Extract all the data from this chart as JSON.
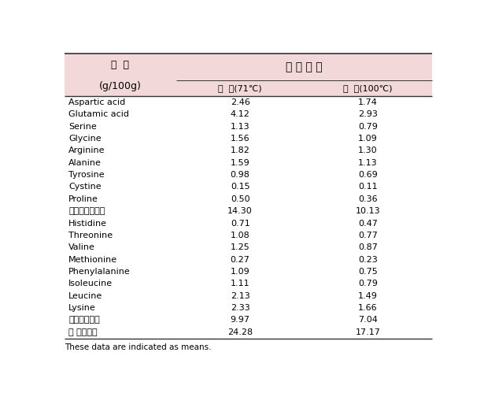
{
  "header_col1_line1": "항  목",
  "header_col1_line2": "(g/100g)",
  "header_row1_col2": "조 리 방 법",
  "header_row2_col2": "구  이(71℃)",
  "header_row2_col3": "삶  기(100℃)",
  "rows": [
    [
      "Aspartic acid",
      "2.46",
      "1.74"
    ],
    [
      "Glutamic acid",
      "4.12",
      "2.93"
    ],
    [
      "Serine",
      "1.13",
      "0.79"
    ],
    [
      "Glycine",
      "1.56",
      "1.09"
    ],
    [
      "Arginine",
      "1.82",
      "1.30"
    ],
    [
      "Alanine",
      "1.59",
      "1.13"
    ],
    [
      "Tyrosine",
      "0.98",
      "0.69"
    ],
    [
      "Cystine",
      "0.15",
      "0.11"
    ],
    [
      "Proline",
      "0.50",
      "0.36"
    ],
    [
      "비필수아미노산",
      "14.30",
      "10.13"
    ],
    [
      "Histidine",
      "0.71",
      "0.47"
    ],
    [
      "Threonine",
      "1.08",
      "0.77"
    ],
    [
      "Valine",
      "1.25",
      "0.87"
    ],
    [
      "Methionine",
      "0.27",
      "0.23"
    ],
    [
      "Phenylalanine",
      "1.09",
      "0.75"
    ],
    [
      "Isoleucine",
      "1.11",
      "0.79"
    ],
    [
      "Leucine",
      "2.13",
      "1.49"
    ],
    [
      "Lysine",
      "2.33",
      "1.66"
    ],
    [
      "필수아미노산",
      "9.97",
      "7.04"
    ],
    [
      "정 아미노산",
      "24.28",
      "17.17"
    ]
  ],
  "footnote": "These data are indicated as means.",
  "header_bg": "#f2d8d8",
  "bg_color": "#ffffff",
  "border_color": "#333333",
  "font_size": 8.0,
  "header_font_size": 9.0,
  "subheader_font_size": 8.0
}
